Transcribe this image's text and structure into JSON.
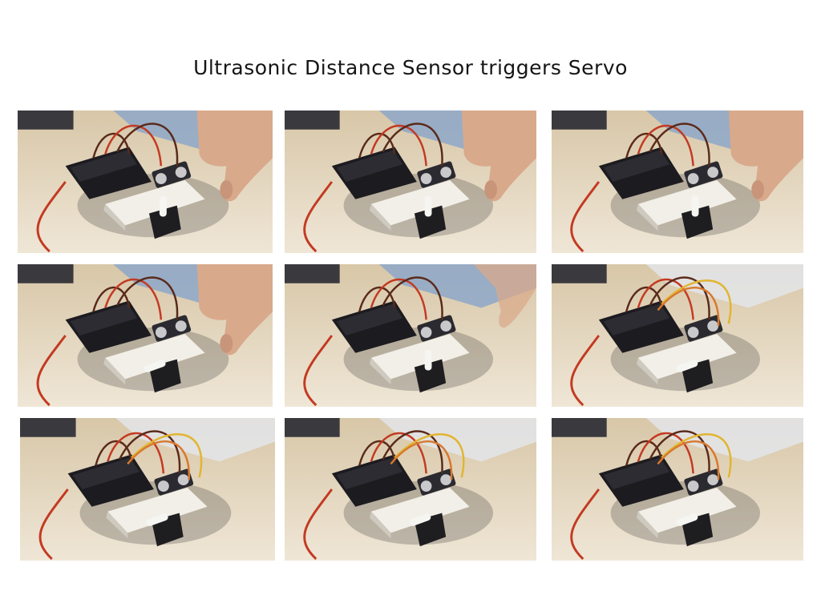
{
  "title": "Ultrasonic Distance Sensor triggers Servo",
  "palette": {
    "table_light": "#efe6d6",
    "table_mid": "#d8c7a8",
    "shadow": "#2c2a2b",
    "board": "#1c1b1f",
    "breadboard": "#f2efe8",
    "servo_body": "#1e1d20",
    "servo_horn": "#f5f5f2",
    "wire_red": "#c33a22",
    "wire_brown": "#5a2a1a",
    "wire_orange": "#d8782e",
    "wire_yellow": "#e1b531",
    "hand": "#d9a98b",
    "gray_panel": "#e3e5ea",
    "laptop_blue": "#8da7c9"
  },
  "frames": [
    {
      "hand": "near",
      "horn": "up"
    },
    {
      "hand": "near",
      "horn": "up"
    },
    {
      "hand": "near",
      "horn": "up"
    },
    {
      "hand": "near",
      "horn": "left"
    },
    {
      "hand": "leaving",
      "horn": "up"
    },
    {
      "hand": "none",
      "horn": "left"
    },
    {
      "hand": "none",
      "horn": "left"
    },
    {
      "hand": "none",
      "horn": "left"
    },
    {
      "hand": "none",
      "horn": "left"
    }
  ]
}
